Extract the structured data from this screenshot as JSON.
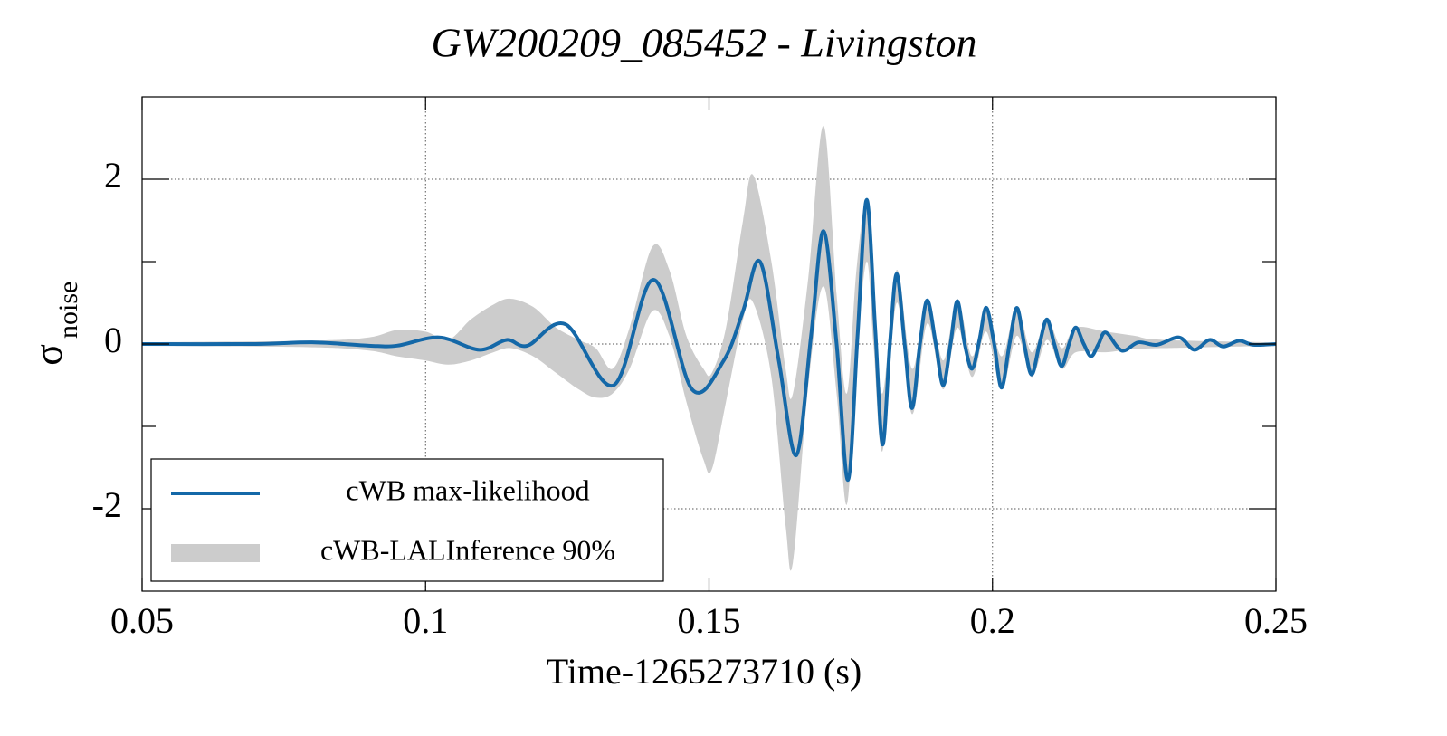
{
  "chart_data": {
    "type": "line",
    "title": "GW200209_085452 - Livingston",
    "xlabel": "Time-1265273710 (s)",
    "ylabel": {
      "symbol": "σ",
      "subscript": "noise"
    },
    "xlim": [
      0.05,
      0.25
    ],
    "xticks": [
      0.05,
      0.1,
      0.15,
      0.2,
      0.25
    ],
    "ylim": [
      -3,
      3
    ],
    "yticks": [
      -2,
      0,
      2
    ],
    "yminorticks": [
      -1,
      1
    ],
    "grid": true,
    "legend": "lower left",
    "series": [
      {
        "name": "cWB max-likelihood",
        "color": "#1468a8",
        "x": [
          0.05,
          0.07,
          0.08,
          0.09,
          0.095,
          0.1024,
          0.1095,
          0.1143,
          0.118,
          0.1247,
          0.1332,
          0.1402,
          0.147,
          0.1526,
          0.156,
          0.159,
          0.1623,
          0.1654,
          0.168,
          0.1702,
          0.1725,
          0.1745,
          0.1762,
          0.1778,
          0.1793,
          0.1806,
          0.1819,
          0.1831,
          0.1845,
          0.1858,
          0.1872,
          0.1885,
          0.19,
          0.1913,
          0.1926,
          0.1938,
          0.1951,
          0.1964,
          0.1977,
          0.1989,
          0.2003,
          0.2016,
          0.203,
          0.2043,
          0.2056,
          0.2069,
          0.2083,
          0.2096,
          0.2109,
          0.2122,
          0.2135,
          0.2147,
          0.2161,
          0.2174,
          0.2187,
          0.22,
          0.2228,
          0.2257,
          0.229,
          0.2329,
          0.2356,
          0.2383,
          0.2407,
          0.2435,
          0.246,
          0.25
        ],
        "values": [
          0,
          0,
          0.02,
          -0.02,
          -0.02,
          0.08,
          -0.07,
          0.05,
          -0.02,
          0.24,
          -0.5,
          0.78,
          -0.55,
          -0.2,
          0.4,
          1.0,
          -0.2,
          -1.35,
          0.1,
          1.37,
          0,
          -1.65,
          0.1,
          1.75,
          0.2,
          -1.22,
          0,
          0.85,
          0,
          -0.78,
          0,
          0.53,
          0,
          -0.5,
          0,
          0.52,
          0,
          -0.3,
          0.05,
          0.44,
          0,
          -0.53,
          0,
          0.44,
          0,
          -0.37,
          0,
          0.3,
          0,
          -0.27,
          0,
          0.2,
          0,
          -0.15,
          0,
          0.14,
          -0.08,
          0.02,
          -0.01,
          0.08,
          -0.07,
          0.05,
          -0.03,
          0.04,
          -0.01,
          0
        ]
      },
      {
        "name": "cWB-LALInference 90%",
        "color": "#cccccc",
        "band": true,
        "x": [
          0.05,
          0.08,
          0.09,
          0.095,
          0.1,
          0.104,
          0.108,
          0.112,
          0.115,
          0.119,
          0.123,
          0.127,
          0.13,
          0.133,
          0.136,
          0.14,
          0.143,
          0.146,
          0.149,
          0.1505,
          0.153,
          0.156,
          0.1578,
          0.161,
          0.1635,
          0.1648,
          0.1675,
          0.1702,
          0.1725,
          0.1743,
          0.176,
          0.1778,
          0.179,
          0.1806,
          0.1831,
          0.1858,
          0.1885,
          0.1913,
          0.1938,
          0.1964,
          0.1989,
          0.2016,
          0.2043,
          0.2069,
          0.2096,
          0.2122,
          0.2147,
          0.22,
          0.225,
          0.23,
          0.25
        ],
        "lower": [
          -0.02,
          -0.04,
          -0.08,
          -0.15,
          -0.2,
          -0.25,
          -0.2,
          -0.1,
          -0.05,
          -0.15,
          -0.35,
          -0.55,
          -0.65,
          -0.6,
          -0.3,
          0.4,
          0.1,
          -0.7,
          -1.4,
          -1.52,
          -0.7,
          0.3,
          0.5,
          -0.4,
          -2.2,
          -2.65,
          -0.5,
          0.7,
          -0.6,
          -1.95,
          -0.2,
          1.0,
          0.0,
          -1.3,
          0.5,
          -0.85,
          0.25,
          -0.55,
          0.2,
          -0.4,
          0.15,
          -0.55,
          0.1,
          -0.4,
          0.05,
          -0.3,
          -0.1,
          -0.1,
          -0.06,
          -0.05,
          -0.02
        ],
        "upper": [
          0.02,
          0.04,
          0.08,
          0.17,
          0.15,
          0.05,
          0.3,
          0.48,
          0.55,
          0.45,
          0.2,
          0.05,
          -0.05,
          -0.3,
          0.2,
          1.18,
          0.9,
          0.1,
          -0.3,
          -0.35,
          0.2,
          1.5,
          2.05,
          1.0,
          -0.3,
          -0.6,
          0.8,
          2.65,
          0.6,
          -0.6,
          0.9,
          1.75,
          0.6,
          -0.6,
          0.9,
          -0.3,
          0.55,
          -0.2,
          0.55,
          -0.15,
          0.45,
          -0.15,
          0.45,
          -0.1,
          0.3,
          -0.05,
          0.2,
          0.15,
          0.1,
          0.05,
          0.02
        ]
      }
    ]
  }
}
